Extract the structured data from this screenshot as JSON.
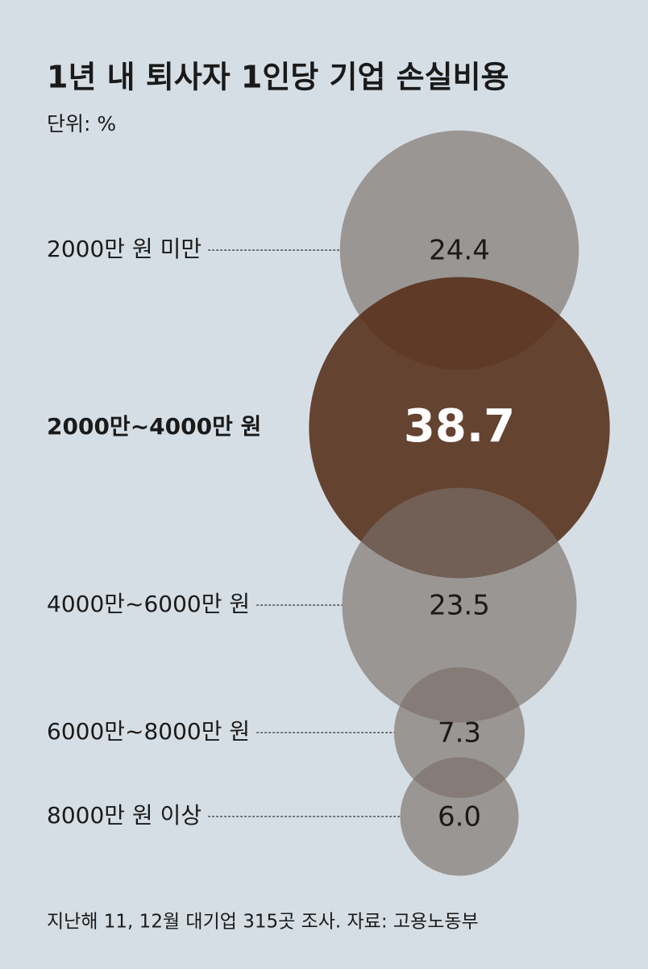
{
  "chart_data": {
    "type": "bubble",
    "title": "1년 내 퇴사자 1인당 기업 손실비용",
    "subtitle": "단위: %",
    "categories": [
      "2000만 원 미만",
      "2000만~4000만 원",
      "4000만~6000만 원",
      "6000만~8000만 원",
      "8000만 원 이상"
    ],
    "values": [
      24.4,
      38.7,
      23.5,
      7.3,
      6
    ],
    "value_labels": [
      "24.4",
      "38.7",
      "23.5",
      "7.3",
      "6.0"
    ],
    "colors": [
      "#7a6e69",
      "#552e18",
      "#7a6e69",
      "#7a6e69",
      "#7a6e69"
    ],
    "source": "지난해 11, 12월 대기업 315곳 조사.  자료: 고용노동부"
  }
}
